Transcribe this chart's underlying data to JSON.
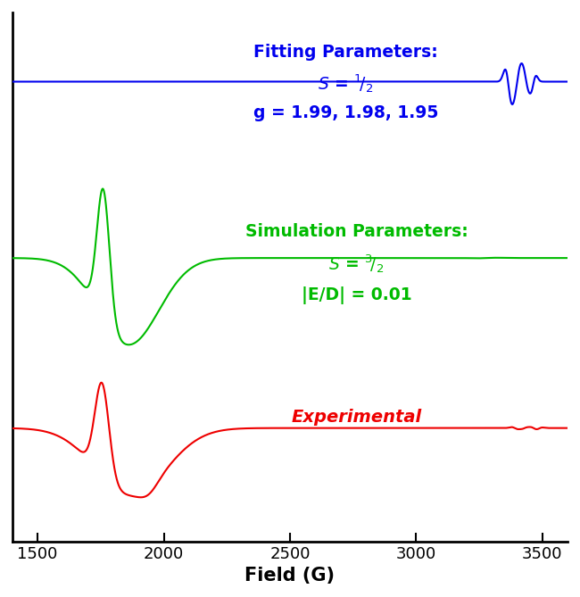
{
  "xlim": [
    1400,
    3600
  ],
  "ylim": [
    -1.0,
    3.2
  ],
  "xlabel": "Field (G)",
  "xlabel_fontsize": 15,
  "background_color": "#ffffff",
  "blue_color": "#0000ee",
  "green_color": "#00bb00",
  "red_color": "#ee0000",
  "blue_label_title": "Fitting Parameters:",
  "blue_label_line3": "g = 1.99, 1.98, 1.95",
  "green_label_title": "Simulation Parameters:",
  "green_label_line3": "|E/D| = 0.01",
  "red_label": "Experimental",
  "blue_baseline": 2.65,
  "green_baseline": 1.25,
  "red_baseline": -0.1,
  "blue_scale": 0.18,
  "green_scale": 0.55,
  "red_scale": 0.55
}
